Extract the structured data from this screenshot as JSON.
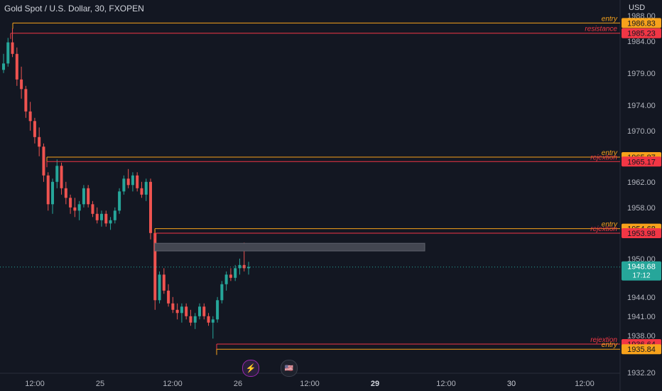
{
  "header": {
    "title": "Gold Spot / U.S. Dollar, 30, FXOPEN",
    "currency": "USD"
  },
  "icons": {
    "events": "lightning-icon",
    "economic": "us-flag-icon"
  },
  "colors": {
    "background": "#131722",
    "up": "#26a69a",
    "down": "#ef5350",
    "entry": "#f7a21b",
    "resistance": "#f23645",
    "grid_text": "#b2b5be",
    "price_line": "#26a69a"
  },
  "chart_data": {
    "type": "candlestick",
    "symbol": "Gold Spot / U.S. Dollar",
    "timeframe": "30",
    "y_axis_ticks": [
      1988.0,
      1984.0,
      1979.0,
      1974.0,
      1970.0,
      1966.0,
      1962.0,
      1958.0,
      1954.0,
      1950.0,
      1944.0,
      1941.0,
      1938.0,
      1932.2
    ],
    "ylim": [
      1932.2,
      1988.0
    ],
    "x_axis_ticks": [
      "12:00",
      "25",
      "12:00",
      "26",
      "12:00",
      "29",
      "12:00",
      "30",
      "12:00"
    ],
    "last_price": {
      "value": 1948.68,
      "countdown": "17:12"
    },
    "levels": [
      {
        "label": "entry",
        "value": 1986.83,
        "color": "#f7a21b"
      },
      {
        "label": "resistance",
        "value": 1985.23,
        "color": "#f23645"
      },
      {
        "label": "entry",
        "value": 1965.87,
        "color": "#f7a21b"
      },
      {
        "label": "rejextion",
        "value": 1965.17,
        "color": "#f23645"
      },
      {
        "label": "entry",
        "value": 1954.68,
        "color": "#f7a21b"
      },
      {
        "label": "rejextion",
        "value": 1953.98,
        "color": "#f23645"
      },
      {
        "label": "rejextion",
        "value": 1936.64,
        "color": "#f23645"
      },
      {
        "label": "entry",
        "value": 1935.84,
        "color": "#f7a21b"
      }
    ],
    "zone": {
      "from": 1951.2,
      "to": 1952.4
    },
    "candles": [
      [
        1979.5,
        1982.0,
        1979.0,
        1980.5
      ],
      [
        1980.5,
        1984.5,
        1980.0,
        1983.8
      ],
      [
        1983.8,
        1986.0,
        1981.5,
        1982.0
      ],
      [
        1982.0,
        1983.0,
        1977.0,
        1978.0
      ],
      [
        1978.0,
        1980.0,
        1975.0,
        1976.5
      ],
      [
        1976.5,
        1977.0,
        1972.0,
        1973.0
      ],
      [
        1973.0,
        1974.5,
        1970.0,
        1971.5
      ],
      [
        1971.5,
        1972.0,
        1968.0,
        1969.0
      ],
      [
        1969.0,
        1970.5,
        1966.0,
        1967.5
      ],
      [
        1967.5,
        1968.0,
        1962.0,
        1963.0
      ],
      [
        1963.0,
        1963.5,
        1957.5,
        1958.5
      ],
      [
        1958.5,
        1962.5,
        1957.0,
        1962.0
      ],
      [
        1962.0,
        1965.5,
        1961.0,
        1964.5
      ],
      [
        1964.5,
        1965.0,
        1960.0,
        1961.0
      ],
      [
        1961.0,
        1962.0,
        1958.5,
        1959.5
      ],
      [
        1959.5,
        1960.0,
        1957.0,
        1958.0
      ],
      [
        1958.0,
        1959.5,
        1956.5,
        1957.5
      ],
      [
        1957.5,
        1959.0,
        1956.0,
        1958.5
      ],
      [
        1958.5,
        1961.5,
        1958.0,
        1961.0
      ],
      [
        1961.0,
        1961.5,
        1958.0,
        1958.5
      ],
      [
        1958.5,
        1959.0,
        1956.5,
        1957.0
      ],
      [
        1957.0,
        1958.0,
        1955.5,
        1956.0
      ],
      [
        1956.0,
        1957.5,
        1955.0,
        1957.0
      ],
      [
        1957.0,
        1957.5,
        1955.0,
        1955.5
      ],
      [
        1955.5,
        1956.5,
        1954.5,
        1956.0
      ],
      [
        1956.0,
        1958.0,
        1955.5,
        1957.5
      ],
      [
        1957.5,
        1961.0,
        1957.0,
        1960.5
      ],
      [
        1960.5,
        1963.0,
        1960.0,
        1962.5
      ],
      [
        1962.5,
        1964.0,
        1961.0,
        1961.5
      ],
      [
        1961.5,
        1963.5,
        1960.5,
        1963.0
      ],
      [
        1963.0,
        1963.5,
        1960.5,
        1961.0
      ],
      [
        1961.0,
        1962.0,
        1959.5,
        1960.0
      ],
      [
        1960.0,
        1962.5,
        1959.0,
        1962.0
      ],
      [
        1962.0,
        1962.5,
        1953.0,
        1954.0
      ],
      [
        1954.0,
        1954.5,
        1942.0,
        1943.5
      ],
      [
        1943.5,
        1948.0,
        1943.0,
        1947.5
      ],
      [
        1947.5,
        1948.5,
        1944.5,
        1945.0
      ],
      [
        1945.0,
        1946.0,
        1942.5,
        1943.0
      ],
      [
        1943.0,
        1944.0,
        1941.5,
        1942.0
      ],
      [
        1942.0,
        1943.0,
        1940.5,
        1941.5
      ],
      [
        1941.5,
        1943.0,
        1940.0,
        1942.5
      ],
      [
        1942.5,
        1943.0,
        1940.5,
        1941.0
      ],
      [
        1941.0,
        1942.0,
        1939.5,
        1940.0
      ],
      [
        1940.0,
        1941.5,
        1939.0,
        1941.0
      ],
      [
        1941.0,
        1943.0,
        1940.5,
        1942.5
      ],
      [
        1942.5,
        1943.0,
        1940.5,
        1941.0
      ],
      [
        1941.0,
        1941.5,
        1939.5,
        1940.0
      ],
      [
        1940.0,
        1941.0,
        1937.5,
        1940.5
      ],
      [
        1940.5,
        1944.0,
        1940.0,
        1943.5
      ],
      [
        1943.5,
        1946.5,
        1943.0,
        1946.0
      ],
      [
        1946.0,
        1948.0,
        1945.0,
        1947.5
      ],
      [
        1947.5,
        1948.5,
        1946.5,
        1947.0
      ],
      [
        1947.0,
        1949.0,
        1946.5,
        1948.5
      ],
      [
        1948.5,
        1950.0,
        1947.5,
        1949.0
      ],
      [
        1949.0,
        1952.5,
        1948.0,
        1948.5
      ],
      [
        1948.5,
        1949.5,
        1947.5,
        1948.7
      ]
    ]
  }
}
